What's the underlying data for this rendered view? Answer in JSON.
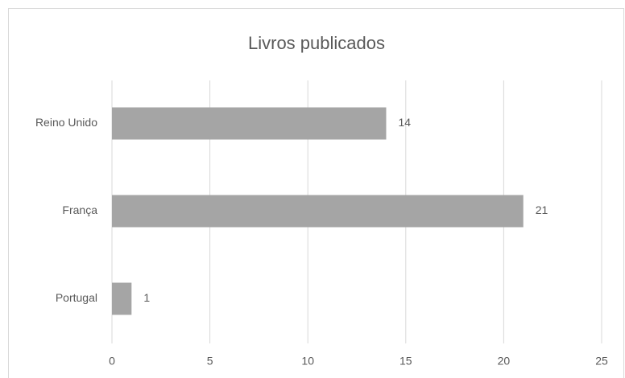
{
  "chart_data": {
    "type": "hbar",
    "title": "Livros publicados",
    "categories": [
      "Reino Unido",
      "França",
      "Portugal"
    ],
    "values": [
      14,
      21,
      1
    ],
    "color": "#a5a5a5",
    "xlim": [
      0,
      25
    ],
    "xticks": [
      0,
      5,
      10,
      15,
      20,
      25
    ],
    "grid": true
  }
}
